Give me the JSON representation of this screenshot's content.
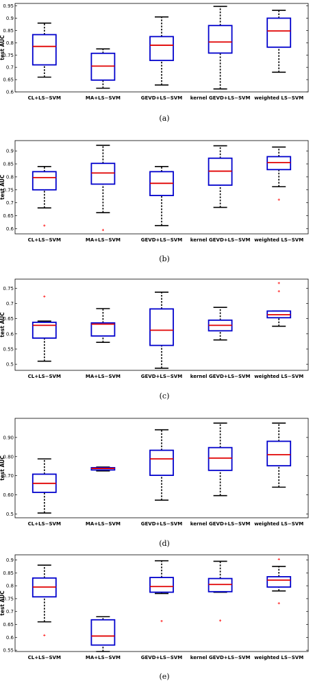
{
  "colors": {
    "box": "#0000cc",
    "median": "#e00000",
    "whisker": "#000000",
    "outlier": "#ff0000"
  },
  "chart_data": [
    {
      "type": "box",
      "caption": "(a)",
      "ylabel": "test AUC",
      "ylim": [
        0.6,
        0.96
      ],
      "yticks": [
        0.6,
        0.65,
        0.7,
        0.75,
        0.8,
        0.85,
        0.9,
        0.95
      ],
      "ytick_labels": [
        "0.6",
        "0.65",
        "0.7",
        "0.75",
        "0.8",
        "0.85",
        "0.9",
        "0.95"
      ],
      "categories": [
        "CL+LS−SVM",
        "MA+LS−SVM",
        "GEVD+LS−SVM",
        "kernel GEVD+LS−SVM",
        "weighted LS−SVM"
      ],
      "boxes": [
        {
          "wlo": 0.66,
          "q1": 0.71,
          "med": 0.785,
          "q3": 0.833,
          "whi": 0.88,
          "outliers": []
        },
        {
          "wlo": 0.615,
          "q1": 0.648,
          "med": 0.705,
          "q3": 0.757,
          "whi": 0.775,
          "outliers": []
        },
        {
          "wlo": 0.628,
          "q1": 0.728,
          "med": 0.79,
          "q3": 0.825,
          "whi": 0.905,
          "outliers": []
        },
        {
          "wlo": 0.612,
          "q1": 0.758,
          "med": 0.803,
          "q3": 0.87,
          "whi": 0.948,
          "outliers": []
        },
        {
          "wlo": 0.68,
          "q1": 0.782,
          "med": 0.848,
          "q3": 0.9,
          "whi": 0.932,
          "outliers": []
        }
      ]
    },
    {
      "type": "box",
      "caption": "(b)",
      "ylabel": "test AUC",
      "ylim": [
        0.58,
        0.94
      ],
      "yticks": [
        0.6,
        0.65,
        0.7,
        0.75,
        0.8,
        0.85,
        0.9
      ],
      "ytick_labels": [
        "0.6",
        "0.65",
        "0.7",
        "0.75",
        "0.8",
        "0.85",
        "0.9"
      ],
      "categories": [
        "CL+LS−SVM",
        "MA+LS−SVM",
        "GEVD+LS−SVM",
        "kernel GEVD+LS−SVM",
        "weighted LS−SVM"
      ],
      "boxes": [
        {
          "wlo": 0.68,
          "q1": 0.75,
          "med": 0.797,
          "q3": 0.82,
          "whi": 0.84,
          "outliers": [
            0.612
          ]
        },
        {
          "wlo": 0.662,
          "q1": 0.772,
          "med": 0.815,
          "q3": 0.852,
          "whi": 0.922,
          "outliers": [
            0.595
          ]
        },
        {
          "wlo": 0.612,
          "q1": 0.728,
          "med": 0.775,
          "q3": 0.82,
          "whi": 0.84,
          "outliers": []
        },
        {
          "wlo": 0.682,
          "q1": 0.768,
          "med": 0.822,
          "q3": 0.872,
          "whi": 0.92,
          "outliers": []
        },
        {
          "wlo": 0.762,
          "q1": 0.828,
          "med": 0.855,
          "q3": 0.878,
          "whi": 0.915,
          "outliers": [
            0.712
          ]
        }
      ]
    },
    {
      "type": "box",
      "caption": "(c)",
      "ylabel": "test AUC",
      "ylim": [
        0.48,
        0.78
      ],
      "yticks": [
        0.5,
        0.55,
        0.6,
        0.65,
        0.7,
        0.75
      ],
      "ytick_labels": [
        "0.5",
        "0.55",
        "0.6",
        "0.65",
        "0.7",
        "0.75"
      ],
      "categories": [
        "CL+LS−SVM",
        "MA+LS−SVM",
        "GEVD+LS−SVM",
        "kernel GEVD+LS−SVM",
        "weighted LS−SVM"
      ],
      "boxes": [
        {
          "wlo": 0.51,
          "q1": 0.586,
          "med": 0.628,
          "q3": 0.638,
          "whi": 0.642,
          "outliers": [
            0.723
          ]
        },
        {
          "wlo": 0.572,
          "q1": 0.593,
          "med": 0.632,
          "q3": 0.636,
          "whi": 0.683,
          "outliers": []
        },
        {
          "wlo": 0.487,
          "q1": 0.562,
          "med": 0.612,
          "q3": 0.682,
          "whi": 0.737,
          "outliers": []
        },
        {
          "wlo": 0.58,
          "q1": 0.61,
          "med": 0.628,
          "q3": 0.645,
          "whi": 0.687,
          "outliers": []
        },
        {
          "wlo": 0.625,
          "q1": 0.653,
          "med": 0.663,
          "q3": 0.675,
          "whi": 0.675,
          "outliers": [
            0.74,
            0.767
          ]
        }
      ]
    },
    {
      "type": "box",
      "caption": "(d)",
      "ylabel": "test AUC",
      "ylim": [
        0.48,
        1.0
      ],
      "yticks": [
        0.5,
        0.6,
        0.7,
        0.8,
        0.9
      ],
      "ytick_labels": [
        "0.5",
        "0.60",
        "0.70",
        "0.80",
        "0.90"
      ],
      "categories": [
        "CL+LS−SVM",
        "MA+LS−SVM",
        "GEVD+LS−SVM",
        "kernel GEVD+LS−SVM",
        "weighted LS−SVM"
      ],
      "boxes": [
        {
          "wlo": 0.505,
          "q1": 0.613,
          "med": 0.66,
          "q3": 0.708,
          "whi": 0.788,
          "outliers": []
        },
        {
          "wlo": 0.725,
          "q1": 0.73,
          "med": 0.738,
          "q3": 0.742,
          "whi": 0.745,
          "outliers": []
        },
        {
          "wlo": 0.572,
          "q1": 0.702,
          "med": 0.788,
          "q3": 0.833,
          "whi": 0.94,
          "outliers": []
        },
        {
          "wlo": 0.596,
          "q1": 0.728,
          "med": 0.792,
          "q3": 0.847,
          "whi": 0.975,
          "outliers": []
        },
        {
          "wlo": 0.64,
          "q1": 0.752,
          "med": 0.81,
          "q3": 0.88,
          "whi": 0.975,
          "outliers": []
        }
      ]
    },
    {
      "type": "box",
      "caption": "(e)",
      "ylabel": "test AUC",
      "ylim": [
        0.545,
        0.92
      ],
      "yticks": [
        0.55,
        0.6,
        0.65,
        0.7,
        0.75,
        0.8,
        0.85,
        0.9
      ],
      "ytick_labels": [
        "0.55",
        "0.6",
        "0.65",
        "0.7",
        "0.75",
        "0.8",
        "0.85",
        "0.9"
      ],
      "categories": [
        "CL+LS−SVM",
        "MA+LS−SVM",
        "GEVD+LS−SVM",
        "kernel GEVD+LS−SVM",
        "weighted LS−SVM"
      ],
      "boxes": [
        {
          "wlo": 0.66,
          "q1": 0.757,
          "med": 0.795,
          "q3": 0.83,
          "whi": 0.88,
          "outliers": [
            0.608
          ]
        },
        {
          "wlo": 0.545,
          "q1": 0.57,
          "med": 0.605,
          "q3": 0.668,
          "whi": 0.68,
          "outliers": []
        },
        {
          "wlo": 0.77,
          "q1": 0.775,
          "med": 0.797,
          "q3": 0.832,
          "whi": 0.897,
          "outliers": [
            0.663
          ]
        },
        {
          "wlo": 0.775,
          "q1": 0.777,
          "med": 0.805,
          "q3": 0.828,
          "whi": 0.895,
          "outliers": [
            0.665
          ]
        },
        {
          "wlo": 0.78,
          "q1": 0.795,
          "med": 0.822,
          "q3": 0.835,
          "whi": 0.875,
          "outliers": [
            0.732,
            0.903
          ]
        }
      ]
    }
  ]
}
